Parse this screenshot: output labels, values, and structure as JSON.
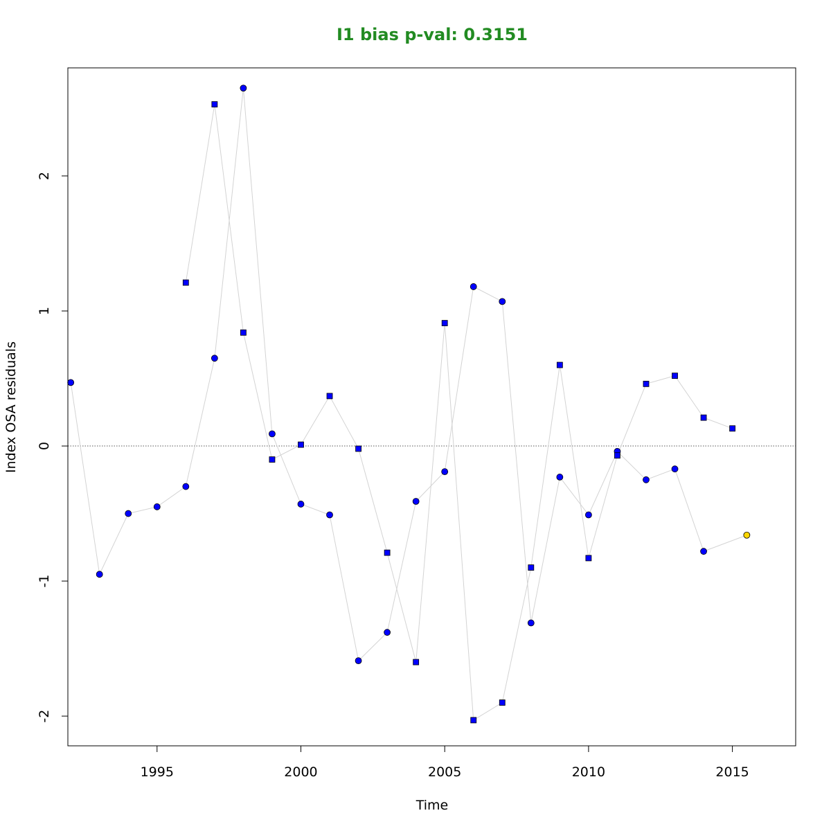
{
  "chart_data": {
    "type": "scatter",
    "title": "I1 bias p-val: 0.3151",
    "title_color": "#228B22",
    "xlabel": "Time",
    "ylabel": "Index OSA residuals",
    "xlim": [
      1991.9,
      2017.2
    ],
    "ylim": [
      -2.22,
      2.8
    ],
    "x_ticks": [
      1995,
      2000,
      2005,
      2010,
      2015
    ],
    "y_ticks": [
      -2,
      -1,
      0,
      1,
      2
    ],
    "reference_line_y": 0,
    "line_color": "#d3d3d3",
    "series": [
      {
        "marker": "circle",
        "color": "#0000ff",
        "x": [
          1992,
          1993,
          1994,
          1995,
          1996,
          1997,
          1998,
          1999,
          2000,
          2001,
          2002,
          2003,
          2004,
          2005,
          2006,
          2007,
          2008,
          2009,
          2010,
          2011,
          2012,
          2013,
          2014
        ],
        "values": [
          0.47,
          -0.95,
          -0.5,
          -0.45,
          -0.3,
          0.65,
          2.65,
          0.09,
          -0.43,
          -0.51,
          -1.59,
          -1.38,
          -0.41,
          -0.19,
          1.18,
          1.07,
          -1.31,
          -0.23,
          -0.51,
          -0.04,
          -0.25,
          -0.17,
          -0.78
        ]
      },
      {
        "marker": "square",
        "color": "#0000ff",
        "x": [
          1996,
          1997,
          1998,
          1999,
          2000,
          2001,
          2002,
          2003,
          2004,
          2005,
          2006,
          2007,
          2008,
          2009,
          2010,
          2011,
          2012,
          2013,
          2014,
          2015
        ],
        "values": [
          1.21,
          2.53,
          0.84,
          -0.1,
          0.01,
          0.37,
          -0.02,
          -0.79,
          -1.6,
          0.91,
          -2.03,
          -1.9,
          -0.9,
          0.6,
          -0.83,
          -0.07,
          0.46,
          0.52,
          0.21,
          0.13
        ]
      }
    ],
    "highlight_point": {
      "x": 2015.5,
      "value": -0.66,
      "marker": "circle",
      "color": "#ffd700"
    }
  }
}
